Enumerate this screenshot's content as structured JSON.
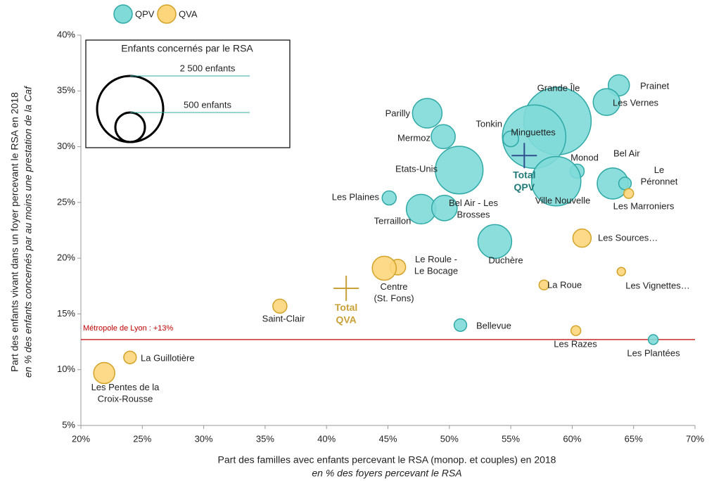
{
  "chart_data": {
    "type": "bubble",
    "x_label": "Part des familles avec enfants percevant le RSA (monop. et couples) en 2018",
    "x_sublabel": "en % des foyers percevant le RSA",
    "y_label": "Part des enfants vivant dans un foyer percevant le RSA en 2018",
    "y_sublabel": "en % des enfants concernés par au moins une prestation de la Caf",
    "xlim": [
      20,
      70
    ],
    "ylim": [
      5,
      40
    ],
    "xticks": [
      {
        "value": 20,
        "label": "20%"
      },
      {
        "value": 25,
        "label": "25%"
      },
      {
        "value": 30,
        "label": "30%"
      },
      {
        "value": 35,
        "label": "35%"
      },
      {
        "value": 40,
        "label": "40%"
      },
      {
        "value": 45,
        "label": "45%"
      },
      {
        "value": 50,
        "label": "50%"
      },
      {
        "value": 55,
        "label": "55%"
      },
      {
        "value": 60,
        "label": "60%"
      },
      {
        "value": 65,
        "label": "65%"
      },
      {
        "value": 70,
        "label": "70%"
      }
    ],
    "yticks": [
      {
        "value": 5,
        "label": "5%"
      },
      {
        "value": 10,
        "label": "10%"
      },
      {
        "value": 15,
        "label": "15%"
      },
      {
        "value": 20,
        "label": "20%"
      },
      {
        "value": 25,
        "label": "25%"
      },
      {
        "value": 30,
        "label": "30%"
      },
      {
        "value": 35,
        "label": "35%"
      },
      {
        "value": 40,
        "label": "40%"
      }
    ],
    "grid": false,
    "legend_position": "top-left",
    "series": [
      {
        "name": "QPV",
        "color": "#7fdad8",
        "stroke": "#2fa9a6",
        "labels": [
          "Prainet",
          "Les Vernes",
          "Grande Île",
          "Minguettes",
          "Tonkin",
          "Parilly",
          "Mermoz",
          "Etats-Unis",
          "Monod",
          "Ville Nouvelle",
          "Bel Air",
          "Le\nPéronnet",
          "Les Plaines",
          "Terraillon",
          "Bel Air - Les\nBrosses",
          "Duchère",
          "Bellevue",
          "Les Plantées"
        ],
        "x": [
          63.8,
          62.8,
          58.8,
          56.9,
          55.0,
          48.2,
          49.5,
          50.8,
          60.4,
          58.7,
          63.3,
          64.3,
          45.1,
          47.7,
          49.6,
          53.7,
          50.9,
          66.6
        ],
        "values": [
          35.5,
          34.0,
          32.3,
          30.9,
          30.7,
          33.0,
          30.9,
          27.9,
          27.8,
          26.9,
          26.7,
          26.7,
          25.4,
          24.4,
          24.5,
          21.5,
          14.0,
          12.7
        ],
        "sizes": [
          255,
          410,
          2600,
          2300,
          140,
          500,
          330,
          1300,
          115,
          1390,
          550,
          90,
          113,
          500,
          370,
          650,
          90,
          55
        ]
      },
      {
        "name": "QVA",
        "color": "#fdd67c",
        "stroke": "#d2a328",
        "labels": [
          "Les Marroniers",
          "Les Sources…",
          "Les Vignettes…",
          "La Roue",
          "Les Razes",
          "Le Roule -\nLe Bocage",
          "Centre\n(St. Fons)",
          "Saint-Clair",
          "La Guillotière",
          "Les Pentes de la\nCroix-Rousse"
        ],
        "x": [
          64.6,
          60.8,
          64.0,
          57.7,
          60.3,
          45.8,
          44.7,
          36.2,
          24.0,
          21.9
        ],
        "values": [
          25.8,
          21.8,
          18.8,
          17.6,
          13.5,
          19.2,
          19.1,
          15.7,
          11.1,
          9.7
        ],
        "sizes": [
          55,
          190,
          40,
          55,
          55,
          140,
          330,
          113,
          90,
          255
        ]
      }
    ],
    "totals": [
      {
        "label": "Total\nQPV",
        "x": 56.1,
        "y": 29.2,
        "color": "#2f4f8f",
        "text_color": "#1f7a78"
      },
      {
        "label": "Total\nQVA",
        "x": 41.6,
        "y": 17.3,
        "color": "#c9a136",
        "text_color": "#c9a136"
      }
    ],
    "reference_line": {
      "value": 12.7,
      "label": "Métropole de Lyon : +13%",
      "color": "#c00000"
    },
    "size_legend": {
      "title": "Enfants concernés par le RSA",
      "items": [
        {
          "value": 2500,
          "label": "2 500 enfants"
        },
        {
          "value": 500,
          "label": "500 enfants"
        }
      ]
    }
  }
}
